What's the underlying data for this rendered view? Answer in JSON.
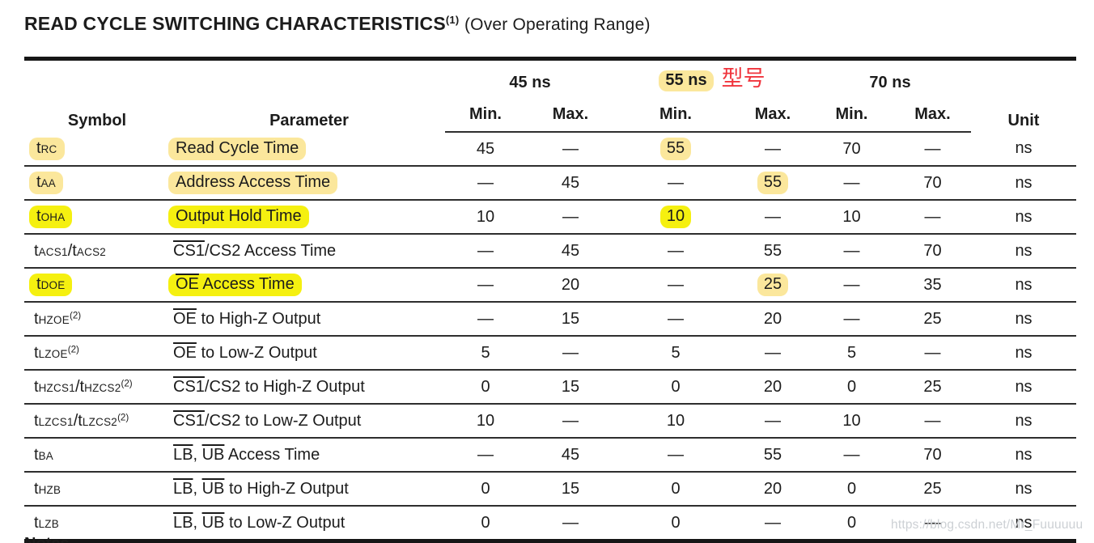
{
  "page": {
    "title": "READ CYCLE SWITCHING CHARACTERISTICS",
    "title_superscript": "(1)",
    "title_suffix": "(Over Operating Range)",
    "notes_label": "Notes",
    "watermark": "https://blog.csdn.net/Mr_Fuuuuuu"
  },
  "annotation": {
    "model_label": "型号"
  },
  "colors": {
    "highlight_pale": "#fbe79c",
    "highlight_bright": "#f5f010",
    "annotation_red": "#f0343c",
    "rule_black": "#161616",
    "watermark_gray": "#ccd0d4"
  },
  "table": {
    "column_groups": [
      {
        "label": "45 ns",
        "highlight": null
      },
      {
        "label": "55 ns",
        "highlight": "pale"
      },
      {
        "label": "70 ns",
        "highlight": null
      }
    ],
    "headers": {
      "symbol": "Symbol",
      "parameter": "Parameter",
      "min": "Min.",
      "max": "Max.",
      "unit": "Unit"
    },
    "rows": [
      {
        "symbol": "t[RC]",
        "symbol_hl": "pale",
        "parameter": "Read Cycle Time",
        "parameter_hl": "pale",
        "values": [
          "45",
          "—",
          "55",
          "—",
          "70",
          "—"
        ],
        "value_hl": [
          null,
          null,
          "pale",
          null,
          null,
          null
        ],
        "unit": "ns"
      },
      {
        "symbol": "t[AA]",
        "symbol_hl": "pale",
        "parameter": "Address Access Time",
        "parameter_hl": "pale",
        "values": [
          "—",
          "45",
          "—",
          "55",
          "—",
          "70"
        ],
        "value_hl": [
          null,
          null,
          null,
          "pale",
          null,
          null
        ],
        "unit": "ns"
      },
      {
        "symbol": "t[OHA]",
        "symbol_hl": "bright",
        "parameter": "Output Hold Time",
        "parameter_hl": "bright",
        "values": [
          "10",
          "—",
          "10",
          "—",
          "10",
          "—"
        ],
        "value_hl": [
          null,
          null,
          "bright",
          null,
          null,
          null
        ],
        "unit": "ns"
      },
      {
        "symbol": "t[ACS1]/t[ACS2]",
        "symbol_hl": null,
        "parameter": "{CS1}/CS2 Access Time",
        "parameter_hl": null,
        "values": [
          "—",
          "45",
          "—",
          "55",
          "—",
          "70"
        ],
        "value_hl": [
          null,
          null,
          null,
          null,
          null,
          null
        ],
        "unit": "ns"
      },
      {
        "symbol": "t[DOE]",
        "symbol_hl": "bright",
        "parameter": "{OE} Access Time",
        "parameter_hl": "bright",
        "values": [
          "—",
          "20",
          "—",
          "25",
          "—",
          "35"
        ],
        "value_hl": [
          null,
          null,
          null,
          "pale",
          null,
          null
        ],
        "unit": "ns"
      },
      {
        "symbol": "t[HZOE]^(2)",
        "symbol_hl": null,
        "parameter": "{OE} to High-Z Output",
        "parameter_hl": null,
        "values": [
          "—",
          "15",
          "—",
          "20",
          "—",
          "25"
        ],
        "value_hl": [
          null,
          null,
          null,
          null,
          null,
          null
        ],
        "unit": "ns"
      },
      {
        "symbol": "t[LZOE]^(2)",
        "symbol_hl": null,
        "parameter": "{OE} to Low-Z Output",
        "parameter_hl": null,
        "values": [
          "5",
          "—",
          "5",
          "—",
          "5",
          "—"
        ],
        "value_hl": [
          null,
          null,
          null,
          null,
          null,
          null
        ],
        "unit": "ns"
      },
      {
        "symbol": "t[HZCS1]/t[HZCS2]^(2)",
        "symbol_hl": null,
        "parameter": "{CS1}/CS2 to High-Z Output",
        "parameter_hl": null,
        "values": [
          "0",
          "15",
          "0",
          "20",
          "0",
          "25"
        ],
        "value_hl": [
          null,
          null,
          null,
          null,
          null,
          null
        ],
        "unit": "ns"
      },
      {
        "symbol": "t[LZCS1]/t[LZCS2]^(2)",
        "symbol_hl": null,
        "parameter": "{CS1}/CS2 to Low-Z Output",
        "parameter_hl": null,
        "values": [
          "10",
          "—",
          "10",
          "—",
          "10",
          "—"
        ],
        "value_hl": [
          null,
          null,
          null,
          null,
          null,
          null
        ],
        "unit": "ns"
      },
      {
        "symbol": "t[BA]",
        "symbol_hl": null,
        "parameter": "{LB}, {UB} Access Time",
        "parameter_hl": null,
        "values": [
          "—",
          "45",
          "—",
          "55",
          "—",
          "70"
        ],
        "value_hl": [
          null,
          null,
          null,
          null,
          null,
          null
        ],
        "unit": "ns"
      },
      {
        "symbol": "t[HZB]",
        "symbol_hl": null,
        "parameter": "{LB}, {UB} to High-Z Output",
        "parameter_hl": null,
        "values": [
          "0",
          "15",
          "0",
          "20",
          "0",
          "25"
        ],
        "value_hl": [
          null,
          null,
          null,
          null,
          null,
          null
        ],
        "unit": "ns"
      },
      {
        "symbol": "t[LZB]",
        "symbol_hl": null,
        "parameter": "{LB}, {UB} to Low-Z Output",
        "parameter_hl": null,
        "values": [
          "0",
          "—",
          "0",
          "—",
          "0",
          "—"
        ],
        "value_hl": [
          null,
          null,
          null,
          null,
          null,
          null
        ],
        "unit": "ns"
      }
    ]
  }
}
